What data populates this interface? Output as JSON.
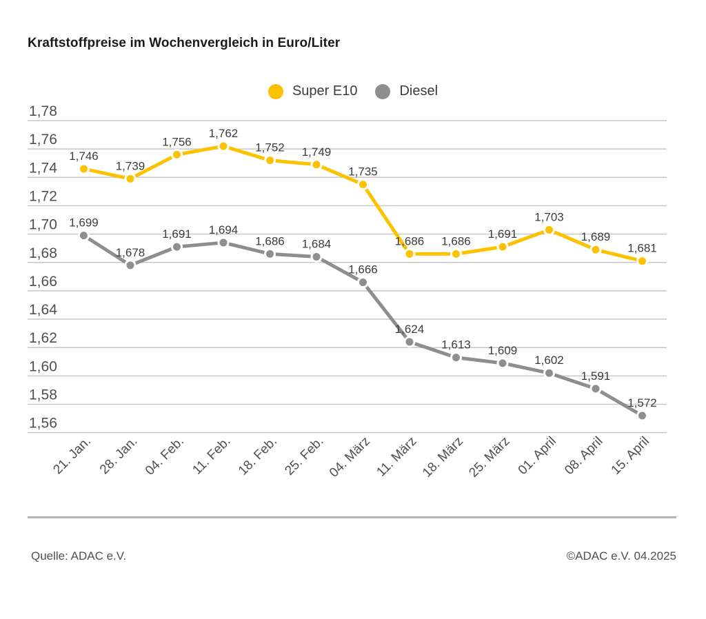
{
  "title": "Kraftstoffpreise im Wochenvergleich in Euro/Liter",
  "legend": [
    {
      "label": "Super E10",
      "color": "#fcc200"
    },
    {
      "label": "Diesel",
      "color": "#8e8e8e"
    }
  ],
  "footer": {
    "source": "Quelle: ADAC e.V.",
    "copyright": "©ADAC e.V. 04.2025"
  },
  "colors": {
    "gridline": "#c7c7c7",
    "axis_text": "#4f4f4e",
    "value_label": "#3c3c3b",
    "marker_halo": "#ffffff",
    "divider": "#b5b5b5"
  },
  "chart_data": {
    "type": "line",
    "title": "Kraftstoffpreise im Wochenvergleich in Euro/Liter",
    "categories": [
      "21. Jan.",
      "28. Jan.",
      "04. Feb.",
      "11. Feb.",
      "18. Feb.",
      "25. Feb.",
      "04. März",
      "11. März",
      "18. März",
      "25. März",
      "01. April",
      "08. April",
      "15. April"
    ],
    "series": [
      {
        "name": "Super E10",
        "color": "#fcc200",
        "values": [
          1.746,
          1.739,
          1.756,
          1.762,
          1.752,
          1.749,
          1.735,
          1.686,
          1.686,
          1.691,
          1.703,
          1.689,
          1.681
        ]
      },
      {
        "name": "Diesel",
        "color": "#8e8e8e",
        "values": [
          1.699,
          1.678,
          1.691,
          1.694,
          1.686,
          1.684,
          1.666,
          1.624,
          1.613,
          1.609,
          1.602,
          1.591,
          1.572
        ]
      }
    ],
    "ylim": [
      1.56,
      1.78
    ],
    "ytick_step": 0.02,
    "decimal_separator": ",",
    "grid": true,
    "legend_position": "top-center",
    "point_labels_visible": true
  }
}
